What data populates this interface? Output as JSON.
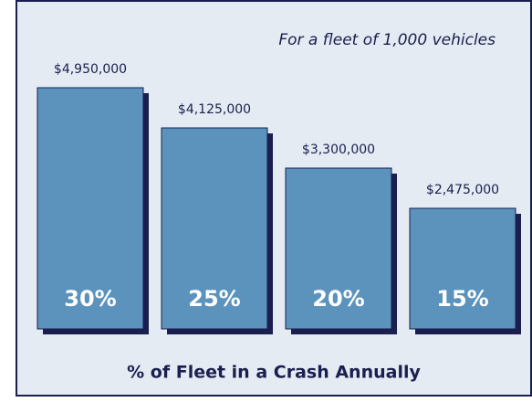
{
  "chart_data": {
    "type": "bar",
    "subtitle": "For a fleet of 1,000 vehicles",
    "x_label": "% of Fleet in a Crash Annually",
    "categories": [
      "30%",
      "25%",
      "20%",
      "15%"
    ],
    "values": [
      4950000,
      4125000,
      3300000,
      2475000
    ],
    "value_labels": [
      "$4,950,000",
      "$4,125,000",
      "$3,300,000",
      "$2,475,000"
    ],
    "color": "#5b93bc"
  }
}
